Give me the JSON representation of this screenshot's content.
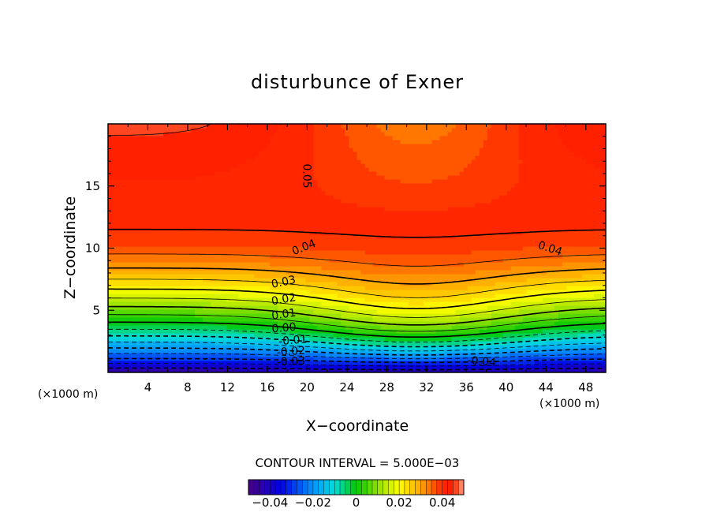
{
  "chart_data": {
    "type": "heatmap",
    "title": "disturbunce of Exner",
    "xlabel": "X−coordinate",
    "ylabel": "Z−coordinate",
    "x_unit": "(×1000 m)",
    "y_unit": "(×1000 m)",
    "x_ticks": [
      "4",
      "8",
      "12",
      "16",
      "20",
      "24",
      "28",
      "32",
      "36",
      "40",
      "44",
      "48"
    ],
    "y_ticks": [
      "5",
      "10",
      "15"
    ],
    "xlim": [
      0,
      50
    ],
    "ylim": [
      0,
      20
    ],
    "contour_interval_text": "CONTOUR INTERVAL = 5.000E−03",
    "contour_interval": 0.005,
    "contour_labels": [
      {
        "text": "0.05",
        "x": 19.6,
        "z": 15.8,
        "rotate": 90
      },
      {
        "text": "0.04",
        "x": 19.8,
        "z": 9.8,
        "rotate": -22
      },
      {
        "text": "0.04",
        "x": 44.3,
        "z": 9.7,
        "rotate": 18
      },
      {
        "text": "0.03",
        "x": 17.7,
        "z": 7.0,
        "rotate": -12
      },
      {
        "text": "0.02",
        "x": 17.7,
        "z": 5.6,
        "rotate": -10
      },
      {
        "text": "0.01",
        "x": 17.7,
        "z": 4.4,
        "rotate": -8
      },
      {
        "text": "0.00",
        "x": 17.7,
        "z": 3.3,
        "rotate": -5
      },
      {
        "text": "-0.01",
        "x": 18.6,
        "z": 2.3,
        "rotate": -5
      },
      {
        "text": "-0.02",
        "x": 18.4,
        "z": 1.4,
        "rotate": -4
      },
      {
        "text": "-0.03",
        "x": 18.4,
        "z": 0.6,
        "rotate": -3
      },
      {
        "text": "-0.04",
        "x": 37.5,
        "z": 0.6,
        "rotate": 5
      }
    ],
    "value_range": [
      -0.05,
      0.05
    ],
    "colorbar": {
      "ticks": [
        "−0.04",
        "−0.02",
        "0",
        "0.02",
        "0.04"
      ],
      "tick_values": [
        -0.04,
        -0.02,
        0,
        0.02,
        0.04
      ]
    },
    "field_description_values": {
      "base_value_at_bottom": -0.045,
      "value_at_top": 0.05
    }
  },
  "colors": {
    "min": "#4b0082",
    "low": "#0000e6",
    "mid_low": "#00c8ff",
    "mid": "#00c800",
    "mid_high": "#ffff00",
    "high": "#ff8c00",
    "max": "#ff2000",
    "above": "#ffffff"
  }
}
